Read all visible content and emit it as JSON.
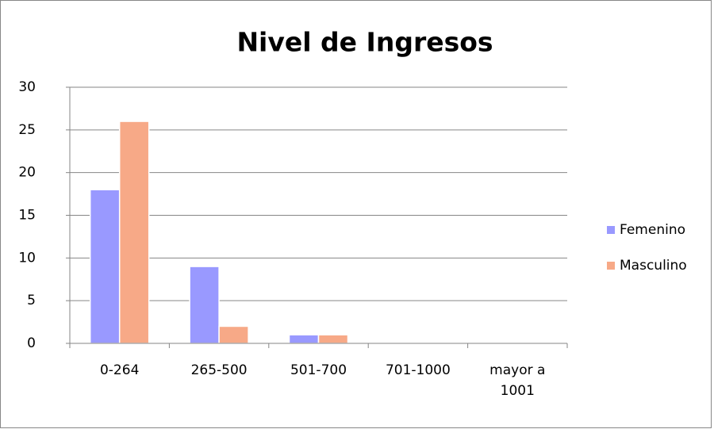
{
  "chart_data": {
    "type": "bar",
    "title": "Nivel de Ingresos",
    "categories": [
      "0-264",
      "265-500",
      "501-700",
      "701-1000",
      "mayor a 1001"
    ],
    "series": [
      {
        "name": "Femenino",
        "color": "#9999ff",
        "values": [
          18,
          9,
          1,
          0,
          0
        ]
      },
      {
        "name": "Masculino",
        "color": "#f7a987",
        "values": [
          26,
          2,
          1,
          0,
          0
        ]
      }
    ],
    "ylim": [
      0,
      30
    ],
    "yticks": [
      0,
      5,
      10,
      15,
      20,
      25,
      30
    ],
    "grid": true,
    "legend": "right"
  }
}
